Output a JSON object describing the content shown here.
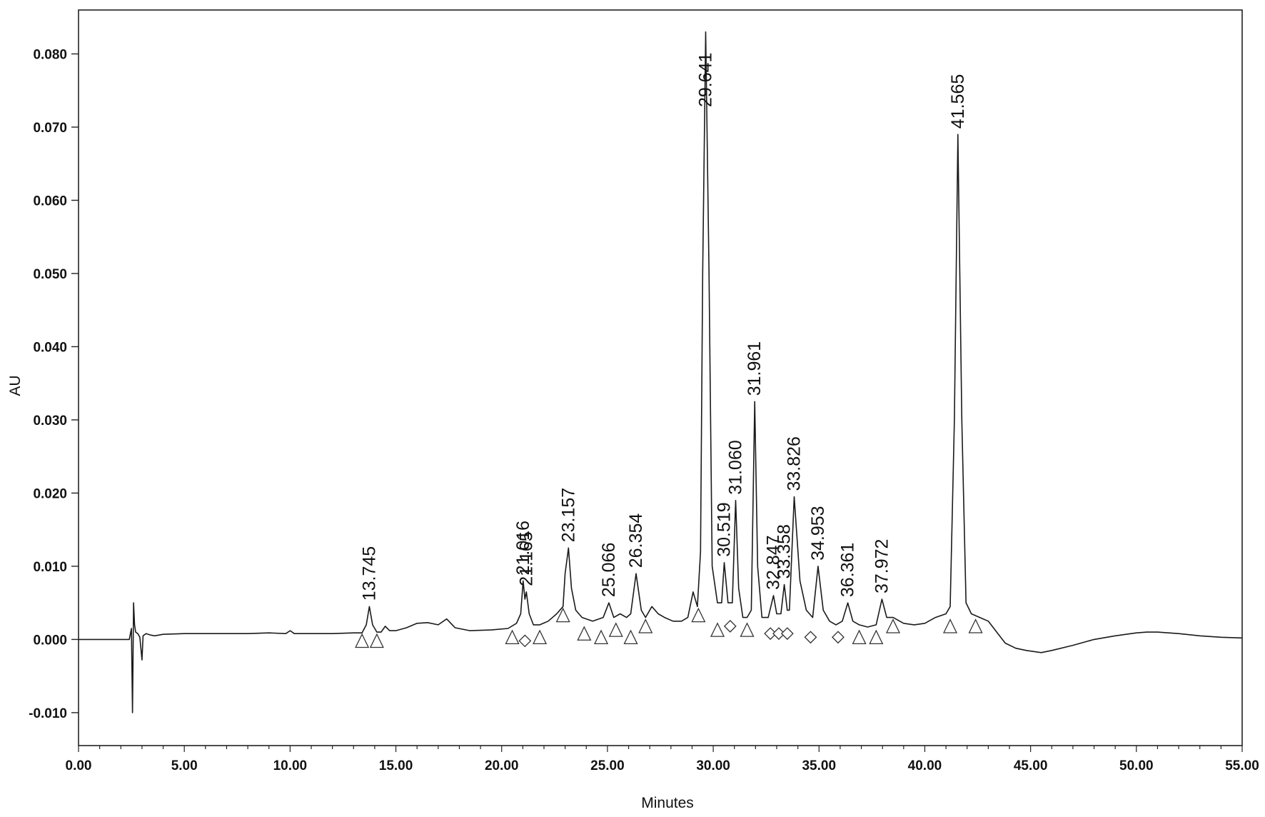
{
  "chart_data": {
    "type": "line",
    "title": "",
    "xlabel": "Minutes",
    "ylabel": "AU",
    "xlim": [
      0,
      55
    ],
    "ylim": [
      -0.0145,
      0.086
    ],
    "grid": false,
    "x_ticks": [
      "0.00",
      "5.00",
      "10.00",
      "15.00",
      "20.00",
      "25.00",
      "30.00",
      "35.00",
      "40.00",
      "45.00",
      "50.00",
      "55.00"
    ],
    "y_ticks": [
      "-0.010",
      "0.000",
      "0.010",
      "0.020",
      "0.030",
      "0.040",
      "0.050",
      "0.060",
      "0.070",
      "0.080"
    ],
    "x_tick_values": [
      0,
      5,
      10,
      15,
      20,
      25,
      30,
      35,
      40,
      45,
      50,
      55
    ],
    "y_tick_values": [
      -0.01,
      0,
      0.01,
      0.02,
      0.03,
      0.04,
      0.05,
      0.06,
      0.07,
      0.08
    ],
    "line_color": "#1a1a1a",
    "series": [
      {
        "x": [
          0,
          1,
          2,
          2.4,
          2.5,
          2.55,
          2.6,
          2.65,
          2.7,
          2.8,
          2.9,
          3.0,
          3.05,
          3.1,
          3.2,
          3.4,
          3.6,
          4,
          5,
          6,
          7,
          8,
          9,
          9.8,
          10,
          10.2,
          11,
          12,
          13,
          13.4,
          13.6,
          13.745,
          13.9,
          14.1,
          14.3,
          14.5,
          14.7,
          15,
          15.5,
          16,
          16.5,
          17,
          17.4,
          17.8,
          18.5,
          19.5,
          20.3,
          20.7,
          20.9,
          21.016,
          21.1,
          21.165,
          21.3,
          21.5,
          21.8,
          22.2,
          22.6,
          22.9,
          23.0,
          23.157,
          23.3,
          23.5,
          23.8,
          24.3,
          24.8,
          25.066,
          25.3,
          25.6,
          25.9,
          26.1,
          26.354,
          26.6,
          26.8,
          27.1,
          27.4,
          27.7,
          28.1,
          28.5,
          28.8,
          29.05,
          29.25,
          29.4,
          29.5,
          29.641,
          29.8,
          29.95,
          30.2,
          30.4,
          30.519,
          30.7,
          30.9,
          31.06,
          31.2,
          31.4,
          31.6,
          31.8,
          31.961,
          32.1,
          32.3,
          32.6,
          32.847,
          33.0,
          33.2,
          33.358,
          33.5,
          33.6,
          33.826,
          34.1,
          34.4,
          34.7,
          34.953,
          35.2,
          35.5,
          35.8,
          36.1,
          36.361,
          36.6,
          36.9,
          37.3,
          37.7,
          37.972,
          38.2,
          38.5,
          39,
          39.5,
          40,
          40.5,
          41,
          41.2,
          41.4,
          41.565,
          41.75,
          41.95,
          42.2,
          42.6,
          43,
          43.4,
          43.8,
          44.3,
          44.8,
          45.5,
          46,
          47,
          48,
          49,
          50,
          50.5,
          51,
          52,
          53,
          54,
          55
        ],
        "y": [
          0.0,
          0.0,
          0.0,
          0.0,
          0.0015,
          -0.01,
          0.005,
          0.002,
          0.001,
          0.0008,
          0.0003,
          -0.0028,
          0.0005,
          0.0006,
          0.0008,
          0.0006,
          0.0005,
          0.0007,
          0.0008,
          0.0008,
          0.0008,
          0.0008,
          0.0009,
          0.0008,
          0.0012,
          0.0008,
          0.0008,
          0.0008,
          0.0009,
          0.0009,
          0.002,
          0.0045,
          0.002,
          0.001,
          0.001,
          0.0018,
          0.0012,
          0.0012,
          0.0016,
          0.0022,
          0.0023,
          0.002,
          0.0028,
          0.0016,
          0.0012,
          0.0013,
          0.0015,
          0.0022,
          0.0035,
          0.008,
          0.0055,
          0.0065,
          0.0035,
          0.002,
          0.002,
          0.0025,
          0.0035,
          0.0045,
          0.009,
          0.0125,
          0.007,
          0.004,
          0.003,
          0.0025,
          0.003,
          0.005,
          0.003,
          0.0035,
          0.003,
          0.0035,
          0.009,
          0.004,
          0.003,
          0.0045,
          0.0035,
          0.003,
          0.0025,
          0.0025,
          0.003,
          0.0065,
          0.0045,
          0.012,
          0.05,
          0.083,
          0.05,
          0.01,
          0.005,
          0.005,
          0.0105,
          0.005,
          0.005,
          0.019,
          0.007,
          0.003,
          0.003,
          0.004,
          0.0325,
          0.01,
          0.003,
          0.003,
          0.006,
          0.0035,
          0.0035,
          0.0075,
          0.004,
          0.004,
          0.0195,
          0.008,
          0.004,
          0.003,
          0.01,
          0.004,
          0.0025,
          0.002,
          0.0025,
          0.005,
          0.0025,
          0.002,
          0.0017,
          0.002,
          0.0055,
          0.003,
          0.003,
          0.0022,
          0.002,
          0.0022,
          0.003,
          0.0035,
          0.0045,
          0.03,
          0.069,
          0.03,
          0.005,
          0.0035,
          0.003,
          0.0025,
          0.001,
          -0.0005,
          -0.0012,
          -0.0015,
          -0.0018,
          -0.0015,
          -0.0008,
          0.0,
          0.0005,
          0.0009,
          0.001,
          0.001,
          0.0008,
          0.0005,
          0.0003,
          0.0002
        ]
      }
    ],
    "peak_labels": [
      {
        "text": "13.745",
        "x": 13.745,
        "y": 0.0045
      },
      {
        "text": "21.016",
        "x": 21.016,
        "y": 0.008
      },
      {
        "text": "21.165",
        "x": 21.165,
        "y": 0.0065
      },
      {
        "text": "23.157",
        "x": 23.157,
        "y": 0.0125
      },
      {
        "text": "25.066",
        "x": 25.066,
        "y": 0.005
      },
      {
        "text": "26.354",
        "x": 26.354,
        "y": 0.009
      },
      {
        "text": "29.641",
        "x": 29.641,
        "y": 0.083
      },
      {
        "text": "30.519",
        "x": 30.519,
        "y": 0.0105
      },
      {
        "text": "31.060",
        "x": 31.06,
        "y": 0.019
      },
      {
        "text": "31.961",
        "x": 31.961,
        "y": 0.0325
      },
      {
        "text": "32.847",
        "x": 32.847,
        "y": 0.006
      },
      {
        "text": "33.358",
        "x": 33.358,
        "y": 0.0075
      },
      {
        "text": "33.826",
        "x": 33.826,
        "y": 0.0195
      },
      {
        "text": "34.953",
        "x": 34.953,
        "y": 0.01
      },
      {
        "text": "36.361",
        "x": 36.361,
        "y": 0.005
      },
      {
        "text": "37.972",
        "x": 37.972,
        "y": 0.0055
      },
      {
        "text": "41.565",
        "x": 41.565,
        "y": 0.069
      }
    ],
    "markers": [
      {
        "shape": "triangle",
        "x": 13.4,
        "y": -0.0005
      },
      {
        "shape": "triangle",
        "x": 14.1,
        "y": -0.0005
      },
      {
        "shape": "triangle",
        "x": 20.5,
        "y": 0.0
      },
      {
        "shape": "diamond",
        "x": 21.1,
        "y": 0.0
      },
      {
        "shape": "triangle",
        "x": 21.8,
        "y": 0.0
      },
      {
        "shape": "triangle",
        "x": 22.9,
        "y": 0.003
      },
      {
        "shape": "triangle",
        "x": 23.9,
        "y": 0.0005
      },
      {
        "shape": "triangle",
        "x": 24.7,
        "y": 0.0
      },
      {
        "shape": "triangle",
        "x": 25.4,
        "y": 0.001
      },
      {
        "shape": "triangle",
        "x": 26.1,
        "y": 0.0
      },
      {
        "shape": "triangle",
        "x": 26.8,
        "y": 0.0015
      },
      {
        "shape": "triangle",
        "x": 29.3,
        "y": 0.003
      },
      {
        "shape": "triangle",
        "x": 30.2,
        "y": 0.001
      },
      {
        "shape": "diamond",
        "x": 30.8,
        "y": 0.002
      },
      {
        "shape": "triangle",
        "x": 31.6,
        "y": 0.001
      },
      {
        "shape": "diamond",
        "x": 32.7,
        "y": 0.001
      },
      {
        "shape": "diamond",
        "x": 33.1,
        "y": 0.001
      },
      {
        "shape": "diamond",
        "x": 33.5,
        "y": 0.001
      },
      {
        "shape": "diamond",
        "x": 34.6,
        "y": 0.0005
      },
      {
        "shape": "diamond",
        "x": 35.9,
        "y": 0.0005
      },
      {
        "shape": "triangle",
        "x": 36.9,
        "y": 0.0
      },
      {
        "shape": "triangle",
        "x": 37.7,
        "y": 0.0
      },
      {
        "shape": "triangle",
        "x": 38.5,
        "y": 0.0015
      },
      {
        "shape": "triangle",
        "x": 41.2,
        "y": 0.0015
      },
      {
        "shape": "triangle",
        "x": 42.4,
        "y": 0.0015
      }
    ]
  }
}
